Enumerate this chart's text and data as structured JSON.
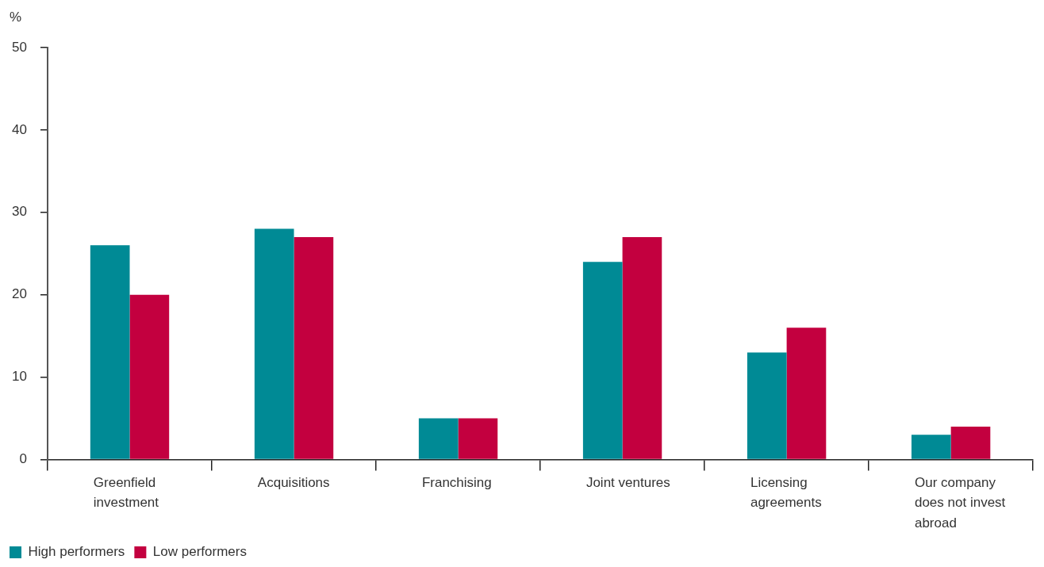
{
  "chart_data": {
    "type": "bar",
    "ylabel": "%",
    "categories": [
      "Greenfield investment",
      "Acquisitions",
      "Franchising",
      "Joint ventures",
      "Licensing agreements",
      "Our company does not invest abroad"
    ],
    "series": [
      {
        "name": "High performers",
        "color": "#008a95",
        "values": [
          26,
          28,
          5,
          24,
          13,
          3
        ]
      },
      {
        "name": "Low performers",
        "color": "#c3003f",
        "values": [
          20,
          27,
          5,
          27,
          16,
          4
        ]
      }
    ],
    "ylim": [
      0,
      50
    ],
    "yticks": [
      0,
      10,
      20,
      30,
      40,
      50
    ],
    "grid": false,
    "legend": "bottom left"
  }
}
